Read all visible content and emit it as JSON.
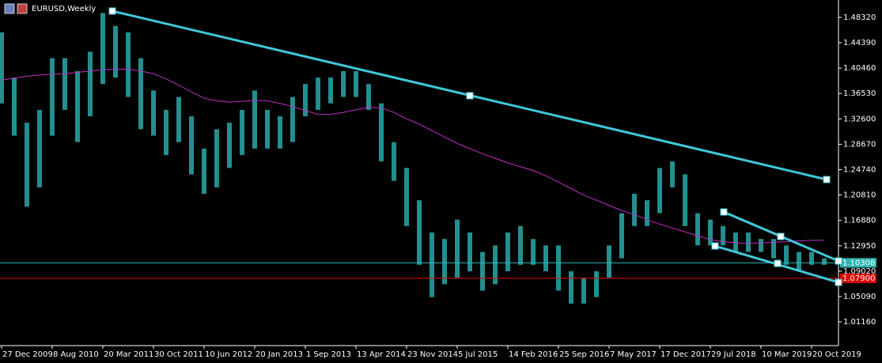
{
  "chart_data": {
    "type": "hilo",
    "title": "EURUSD,Weekly",
    "color": "#2aa8a8",
    "xlim": [
      -1,
      529
    ],
    "ylim": [
      0.9749,
      1.5101
    ],
    "xticks": [
      {
        "value": 0,
        "label": "27 Dec 2009"
      },
      {
        "value": 32,
        "label": "8 Aug 2010"
      },
      {
        "value": 64,
        "label": "20 Mar 2011"
      },
      {
        "value": 96,
        "label": "30 Oct 2011"
      },
      {
        "value": 128,
        "label": "10 Jun 2012"
      },
      {
        "value": 160,
        "label": "20 Jan 2013"
      },
      {
        "value": 192,
        "label": "1 Sep 2013"
      },
      {
        "value": 224,
        "label": "13 Apr 2014"
      },
      {
        "value": 256,
        "label": "23 Nov 2014"
      },
      {
        "value": 288,
        "label": "5 Jul 2015"
      },
      {
        "value": 320,
        "label": "14 Feb 2016"
      },
      {
        "value": 352,
        "label": "25 Sep 2016"
      },
      {
        "value": 384,
        "label": "7 May 2017"
      },
      {
        "value": 416,
        "label": "17 Dec 2017"
      },
      {
        "value": 448,
        "label": "29 Jul 2018"
      },
      {
        "value": 480,
        "label": "10 Mar 2019"
      },
      {
        "value": 512,
        "label": "20 Oct 2019"
      }
    ],
    "yticks": [
      {
        "value": 1.4832,
        "label": "1.48320"
      },
      {
        "value": 1.4439,
        "label": "1.44390"
      },
      {
        "value": 1.4046,
        "label": "1.40460"
      },
      {
        "value": 1.3653,
        "label": "1.36530"
      },
      {
        "value": 1.326,
        "label": "1.32600"
      },
      {
        "value": 1.2867,
        "label": "1.28670"
      },
      {
        "value": 1.2474,
        "label": "1.24740"
      },
      {
        "value": 1.2081,
        "label": "1.20810"
      },
      {
        "value": 1.1688,
        "label": "1.16880"
      },
      {
        "value": 1.1295,
        "label": "1.12950"
      },
      {
        "value": 1.0902,
        "label": "1.09020"
      },
      {
        "value": 1.0509,
        "label": "1.05090"
      },
      {
        "value": 1.0116,
        "label": "1.01160"
      }
    ],
    "x": [
      0,
      8,
      16,
      24,
      32,
      40,
      48,
      56,
      64,
      72,
      80,
      88,
      96,
      104,
      112,
      120,
      128,
      136,
      144,
      152,
      160,
      168,
      176,
      184,
      192,
      200,
      208,
      216,
      224,
      232,
      240,
      248,
      256,
      264,
      272,
      280,
      288,
      296,
      304,
      312,
      320,
      328,
      336,
      344,
      352,
      360,
      368,
      376,
      384,
      392,
      400,
      408,
      416,
      424,
      432,
      440,
      448,
      456,
      464,
      472,
      480,
      488,
      496,
      504,
      512,
      520
    ],
    "high": [
      1.46,
      1.39,
      1.32,
      1.34,
      1.42,
      1.42,
      1.4,
      1.43,
      1.49,
      1.47,
      1.46,
      1.42,
      1.37,
      1.34,
      1.36,
      1.33,
      1.28,
      1.31,
      1.32,
      1.34,
      1.37,
      1.34,
      1.33,
      1.36,
      1.38,
      1.39,
      1.39,
      1.4,
      1.4,
      1.38,
      1.35,
      1.29,
      1.25,
      1.2,
      1.15,
      1.14,
      1.17,
      1.15,
      1.12,
      1.13,
      1.15,
      1.16,
      1.14,
      1.13,
      1.13,
      1.09,
      1.08,
      1.09,
      1.13,
      1.18,
      1.21,
      1.2,
      1.25,
      1.26,
      1.24,
      1.18,
      1.17,
      1.16,
      1.15,
      1.15,
      1.14,
      1.14,
      1.13,
      1.12,
      1.12,
      1.11
    ],
    "low": [
      1.35,
      1.3,
      1.19,
      1.22,
      1.3,
      1.34,
      1.29,
      1.33,
      1.38,
      1.39,
      1.36,
      1.31,
      1.3,
      1.27,
      1.29,
      1.24,
      1.21,
      1.22,
      1.25,
      1.27,
      1.28,
      1.28,
      1.28,
      1.29,
      1.33,
      1.34,
      1.35,
      1.36,
      1.36,
      1.34,
      1.26,
      1.23,
      1.16,
      1.1,
      1.05,
      1.07,
      1.08,
      1.09,
      1.06,
      1.07,
      1.09,
      1.1,
      1.1,
      1.09,
      1.06,
      1.04,
      1.04,
      1.05,
      1.08,
      1.11,
      1.16,
      1.16,
      1.18,
      1.22,
      1.16,
      1.13,
      1.13,
      1.13,
      1.12,
      1.12,
      1.12,
      1.11,
      1.1,
      1.09,
      1.1,
      1.1
    ],
    "ma": [
      1.386,
      1.389,
      1.392,
      1.394,
      1.395,
      1.396,
      1.398,
      1.4,
      1.402,
      1.403,
      1.403,
      1.4,
      1.396,
      1.388,
      1.378,
      1.368,
      1.358,
      1.354,
      1.352,
      1.353,
      1.355,
      1.354,
      1.35,
      1.345,
      1.339,
      1.333,
      1.333,
      1.336,
      1.34,
      1.344,
      1.343,
      1.336,
      1.326,
      1.318,
      1.308,
      1.298,
      1.288,
      1.28,
      1.272,
      1.265,
      1.258,
      1.252,
      1.246,
      1.238,
      1.228,
      1.218,
      1.208,
      1.2,
      1.192,
      1.184,
      1.178,
      1.17,
      1.163,
      1.157,
      1.151,
      1.145,
      1.139,
      1.136,
      1.134,
      1.133,
      1.134,
      1.135,
      1.136,
      1.137,
      1.138,
      1.138
    ],
    "ma_color": "#c030c0",
    "trendlines": [
      {
        "x1": 70,
        "y1": 1.493,
        "x2": 521.5,
        "y2": 1.2321,
        "hx": 296,
        "hy": 1.3619
      },
      {
        "x1": 456.5,
        "y1": 1.1818,
        "x2": 529,
        "y2": 1.1059,
        "hx": 492.5,
        "hy": 1.1439
      },
      {
        "x1": 451,
        "y1": 1.1292,
        "x2": 529,
        "y2": 1.0728,
        "hx": 490.5,
        "hy": 1.1022
      }
    ],
    "trend_color": "#3fc8d8",
    "price_lines": [
      {
        "value": 1.10308,
        "label": "1.10308",
        "color": "#2fb5b5"
      },
      {
        "value": 1.079,
        "label": "1.07900",
        "color": "#e00000"
      }
    ]
  }
}
